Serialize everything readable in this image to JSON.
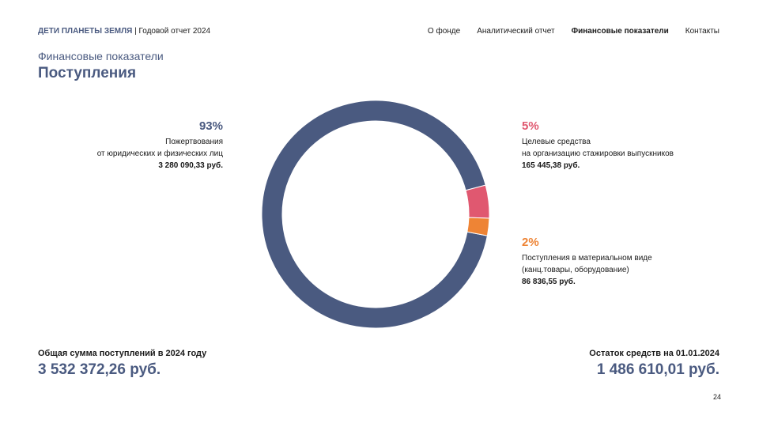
{
  "header": {
    "brand_name": "ДЕТИ ПЛАНЕТЫ ЗЕМЛЯ",
    "brand_suffix": " | Годовой отчет 2024",
    "nav": [
      {
        "label": "О фонде"
      },
      {
        "label": "Аналитический отчет"
      },
      {
        "label": "Финансовые показатели",
        "active": true
      },
      {
        "label": "Контакты"
      }
    ]
  },
  "section_label": "Финансовые показатели",
  "page_title": "Поступления",
  "chart_data": {
    "type": "pie",
    "title": "Поступления",
    "slices": [
      {
        "label": "Пожертвования от юридических и физических лиц",
        "value": 3280090.33,
        "percent": 93,
        "color": "#4a5a80"
      },
      {
        "label": "Целевые средства на организацию стажировки выпускников",
        "value": 165445.38,
        "percent": 5,
        "color": "#e05870"
      },
      {
        "label": "Поступления в материальном виде (канц.товары, оборудование)",
        "value": 86836.55,
        "percent": 2,
        "color": "#ee8435"
      }
    ],
    "callouts": [
      {
        "pct": "93%",
        "line1": "Пожертвования",
        "line2": "от юридических и физических лиц",
        "amount": "3 280 090,33 руб."
      },
      {
        "pct": "5%",
        "line1": "Целевые средства",
        "line2": "на организацию стажировки выпускников",
        "amount": "165 445,38 руб."
      },
      {
        "pct": "2%",
        "line1": "Поступления в материальном виде",
        "line2": "(канц.товары, оборудование)",
        "amount": "86 836,55 руб."
      }
    ]
  },
  "total": {
    "label": "Общая сумма поступлений в 2024 году",
    "value": "3 532 372,26 руб."
  },
  "balance": {
    "label": "Остаток средств на 01.01.2024",
    "value": "1 486 610,01 руб."
  },
  "page_number": "24"
}
